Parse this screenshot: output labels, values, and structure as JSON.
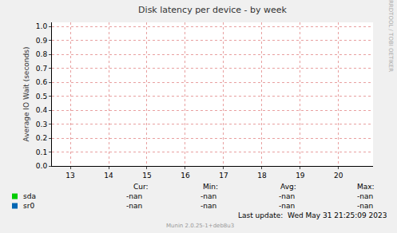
{
  "chart_data": {
    "type": "line",
    "title": "Disk latency per device - by week",
    "y_label": "Average IO Wait (seconds)",
    "x": [],
    "xlim": [
      12.52,
      20.9
    ],
    "xticks": [
      13,
      14,
      15,
      16,
      17,
      18,
      19,
      20
    ],
    "ylim": [
      0,
      1.03
    ],
    "yticks": [
      {
        "value": 0,
        "label": "0.0"
      },
      0.1,
      0.2,
      0.3,
      0.4,
      0.5,
      0.6,
      0.7,
      0.8,
      0.9,
      {
        "value": 1,
        "label": "1.0"
      }
    ],
    "grid": true,
    "stats_headers": [
      "Cur:",
      "Min:",
      "Avg:",
      "Max:"
    ],
    "series": [
      {
        "name": "sda",
        "color": "#00cc00",
        "values": [],
        "stats": [
          "-nan",
          "-nan",
          "-nan",
          "-nan"
        ]
      },
      {
        "name": "sr0",
        "color": "#0066b3",
        "values": [],
        "stats": [
          "-nan",
          "-nan",
          "-nan",
          "-nan"
        ]
      }
    ],
    "last_update": "Last update:  Wed May 31 21:25:09 2023",
    "footer": "Munin 2.0.25-1+deb8u3",
    "watermark": "RRDTOOL / TOBI OETIKER"
  }
}
